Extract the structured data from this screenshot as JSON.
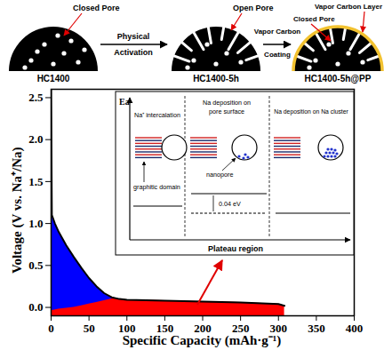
{
  "chart_data": {
    "type": "area",
    "xlabel": "Specific Capacity (mAh·g⁻¹)",
    "ylabel": "Voltage (V vs. Na⁺/Na)",
    "xlim": [
      0,
      400
    ],
    "xticks": [
      0,
      50,
      100,
      150,
      200,
      250,
      300,
      350,
      400
    ],
    "ylim": [
      -0.1,
      2.6
    ],
    "yticks": [
      {
        "value": 0,
        "label": "0.0"
      },
      0.5,
      {
        "value": 1,
        "label": "1.0"
      },
      1.5,
      {
        "value": 2,
        "label": "2.0"
      },
      2.5
    ],
    "series": [
      {
        "type": "area",
        "color": "#0000ff",
        "x": [
          0,
          1,
          5,
          10,
          20,
          30,
          40,
          50,
          60,
          70,
          80,
          90
        ],
        "values": [
          1.1,
          1.08,
          1.0,
          0.9,
          0.74,
          0.6,
          0.47,
          0.35,
          0.25,
          0.17,
          0.12,
          0.1
        ]
      },
      {
        "type": "area",
        "color": "#ff0000",
        "x": [
          0,
          10,
          20,
          30,
          40,
          50,
          60,
          70,
          80,
          90,
          100,
          150,
          200,
          250,
          300,
          308
        ],
        "values": [
          -0.04,
          -0.02,
          -0.01,
          0.0,
          0.02,
          0.04,
          0.06,
          0.08,
          0.1,
          0.1,
          0.09,
          0.08,
          0.07,
          0.06,
          0.04,
          0.02
        ]
      },
      {
        "type": "line",
        "color": "#000000",
        "x": [
          0,
          1,
          5,
          10,
          20,
          30,
          40,
          50,
          60,
          70,
          80,
          90,
          100,
          150,
          200,
          250,
          300,
          308
        ],
        "values": [
          2.6,
          1.1,
          1.0,
          0.9,
          0.74,
          0.6,
          0.47,
          0.35,
          0.25,
          0.17,
          0.12,
          0.1,
          0.09,
          0.08,
          0.07,
          0.06,
          0.04,
          0.02
        ]
      }
    ]
  },
  "schematic": {
    "samples": [
      "HC1400",
      "HC1400-5h",
      "HC1400-5h@PP"
    ],
    "steps": [
      [
        "Physical",
        "Activation"
      ],
      [
        "Vapor Carbon",
        "Coating"
      ]
    ],
    "labels": [
      "Closed Pore",
      "Open Pore",
      "Closed Pore",
      "Vapor Carbon Layer"
    ]
  },
  "inset": {
    "energy_axis": "Ea",
    "x_axis": "Plateau region",
    "stages": [
      [
        "Na⁺ intercalation"
      ],
      [
        "Na deposition on",
        "pore surface"
      ],
      [
        "Na deposition on Na cluster"
      ]
    ],
    "graphitic_domain": "graphitic domain",
    "nanopore": "nanopore",
    "energy_gap": "0.04 eV"
  }
}
